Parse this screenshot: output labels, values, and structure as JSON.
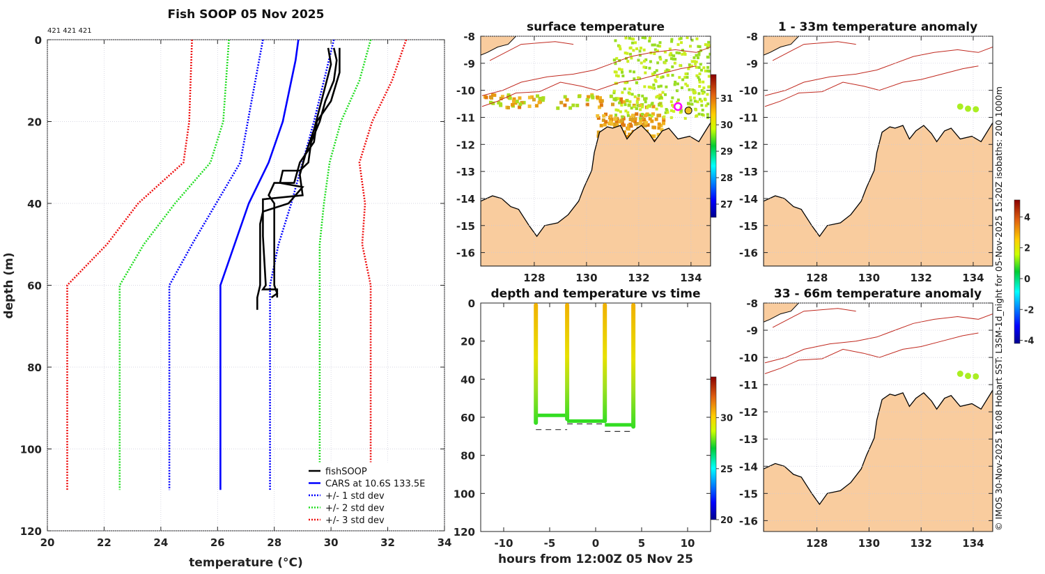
{
  "credit": "© IMOS 30-Nov-2025 16:08 Hobart SST: L3SM-1d_night for 05-Nov-2025 15:20Z isobaths: 200  1000m",
  "colors": {
    "land": "#f9cc9e",
    "isobath": "#c0281e",
    "coast": "#000000",
    "cars": "#0000ff",
    "std1": "#0000ff",
    "std2": "#22dd22",
    "std3": "#ee1111",
    "fishsoop": "#000000"
  },
  "chart_data": [
    {
      "type": "line",
      "title": "Fish SOOP 05 Nov 2025",
      "annotation": "421 421 421",
      "xlabel": "temperature (°C)",
      "ylabel": "depth (m)",
      "xlim": [
        20,
        34
      ],
      "ylim": [
        0,
        120
      ],
      "xticks": [
        "20",
        "22",
        "24",
        "26",
        "28",
        "30",
        "32",
        "34"
      ],
      "yticks": [
        "0",
        "20",
        "40",
        "60",
        "80",
        "100",
        "120"
      ],
      "grid": true,
      "legend_position": "bottom-right",
      "legend": [
        "fishSOOP",
        "CARS at 10.6S 133.5E",
        "+/- 1 std dev",
        "+/- 2 std dev",
        "+/- 3 std dev"
      ],
      "series": [
        {
          "name": "-3 std dev",
          "style": "dotted",
          "color": "#ee1111",
          "points": [
            [
              25.1,
              0
            ],
            [
              25.0,
              20
            ],
            [
              24.8,
              30
            ],
            [
              23.2,
              40
            ],
            [
              22.1,
              50
            ],
            [
              20.7,
              60
            ],
            [
              20.7,
              110
            ]
          ]
        },
        {
          "name": "-2 std dev",
          "style": "dotted",
          "color": "#22dd22",
          "points": [
            [
              26.4,
              0
            ],
            [
              26.2,
              20
            ],
            [
              25.75,
              30
            ],
            [
              24.5,
              40
            ],
            [
              23.4,
              50
            ],
            [
              22.55,
              60
            ],
            [
              22.55,
              110
            ]
          ]
        },
        {
          "name": "-1 std dev",
          "style": "dotted",
          "color": "#0000ff",
          "points": [
            [
              27.6,
              0
            ],
            [
              27.2,
              15
            ],
            [
              26.8,
              30
            ],
            [
              25.95,
              40
            ],
            [
              25.1,
              50
            ],
            [
              24.3,
              60
            ],
            [
              24.3,
              110
            ]
          ]
        },
        {
          "name": "CARS at 10.6S 133.5E",
          "style": "solid",
          "color": "#0000ff",
          "points": [
            [
              28.85,
              0
            ],
            [
              28.75,
              5
            ],
            [
              28.3,
              20
            ],
            [
              27.8,
              30
            ],
            [
              27.1,
              40
            ],
            [
              26.6,
              50
            ],
            [
              26.1,
              60
            ],
            [
              26.1,
              110
            ]
          ]
        },
        {
          "name": "+1 std dev",
          "style": "dotted",
          "color": "#0000ff",
          "points": [
            [
              30.1,
              0
            ],
            [
              29.75,
              10
            ],
            [
              29.4,
              20
            ],
            [
              29.0,
              30
            ],
            [
              28.6,
              40
            ],
            [
              28.15,
              50
            ],
            [
              27.85,
              60
            ],
            [
              27.85,
              110
            ]
          ]
        },
        {
          "name": "+2 std dev",
          "style": "dotted",
          "color": "#22dd22",
          "points": [
            [
              31.4,
              0
            ],
            [
              31.0,
              10
            ],
            [
              30.35,
              20
            ],
            [
              29.95,
              30
            ],
            [
              29.75,
              40
            ],
            [
              29.6,
              50
            ],
            [
              29.6,
              60
            ],
            [
              29.6,
              110
            ]
          ]
        },
        {
          "name": "+3 std dev",
          "style": "dotted",
          "color": "#ee1111",
          "points": [
            [
              32.65,
              0
            ],
            [
              32.15,
              10
            ],
            [
              31.45,
              20
            ],
            [
              31.0,
              30
            ],
            [
              31.2,
              40
            ],
            [
              31.1,
              50
            ],
            [
              31.4,
              60
            ],
            [
              31.4,
              110
            ]
          ]
        },
        {
          "name": "fishSOOP",
          "style": "solid",
          "color": "#000000",
          "points": [
            [
              30.1,
              2
            ],
            [
              30.2,
              5
            ],
            [
              30.1,
              10
            ],
            [
              29.8,
              15
            ],
            [
              29.6,
              20
            ],
            [
              29.3,
              25
            ],
            [
              29.2,
              30
            ],
            [
              28.9,
              32
            ],
            [
              28.3,
              32
            ],
            [
              28.2,
              35
            ],
            [
              29.0,
              36
            ],
            [
              28.5,
              40
            ],
            [
              27.6,
              42
            ],
            [
              27.5,
              45
            ],
            [
              27.5,
              60
            ],
            [
              27.4,
              63
            ],
            [
              27.4,
              66
            ]
          ]
        },
        {
          "name": "fishSOOP",
          "style": "solid",
          "color": "#000000",
          "points": [
            [
              30.3,
              2
            ],
            [
              30.3,
              8
            ],
            [
              30.0,
              15
            ],
            [
              29.5,
              20
            ],
            [
              29.4,
              25
            ],
            [
              28.9,
              30
            ],
            [
              28.7,
              35
            ],
            [
              28.0,
              35
            ],
            [
              27.8,
              38
            ],
            [
              28.0,
              40
            ],
            [
              28.0,
              60
            ],
            [
              28.1,
              62
            ],
            [
              27.9,
              63
            ]
          ]
        },
        {
          "name": "fishSOOP",
          "style": "solid",
          "color": "#000000",
          "points": [
            [
              29.9,
              2
            ],
            [
              30.0,
              6
            ],
            [
              29.7,
              14
            ],
            [
              29.4,
              22
            ],
            [
              29.1,
              28
            ],
            [
              28.9,
              33
            ],
            [
              29.0,
              38
            ],
            [
              27.6,
              39
            ],
            [
              27.6,
              48
            ],
            [
              27.7,
              60
            ],
            [
              27.6,
              61
            ],
            [
              28.1,
              61
            ],
            [
              28.1,
              63
            ]
          ]
        }
      ]
    },
    {
      "type": "heatmap",
      "title": "surface temperature",
      "xticks": [
        "128",
        "130",
        "132",
        "134"
      ],
      "yticks": [
        "-8",
        "-9",
        "-10",
        "-11",
        "-12",
        "-13",
        "-14",
        "-15",
        "-16"
      ],
      "xlim": [
        125.95,
        134.75
      ],
      "ylim": [
        -16.5,
        -8
      ],
      "colorbar": {
        "ticks": [
          "27",
          "28",
          "29",
          "30",
          "31"
        ],
        "range": [
          26.5,
          31.9
        ]
      },
      "markers": [
        {
          "lon": 133.5,
          "lat": -10.6,
          "color": "#ff00ff"
        },
        {
          "lon": 133.9,
          "lat": -10.75,
          "color": "#f0c020"
        }
      ]
    },
    {
      "type": "scatter",
      "title": "depth and temperature vs time",
      "xlabel": "hours from 12:00Z 05 Nov 25",
      "xticks": [
        "-10",
        "-5",
        "0",
        "5",
        "10"
      ],
      "yticks": [
        "0",
        "20",
        "40",
        "60",
        "80",
        "100",
        "120"
      ],
      "xlim": [
        -12.5,
        12.5
      ],
      "ylim": [
        0,
        120
      ],
      "colorbar": {
        "ticks": [
          "20",
          "25",
          "30"
        ],
        "range": [
          20,
          34
        ]
      },
      "casts": [
        {
          "hours": -6.5,
          "max_depth": 64
        },
        {
          "hours": -3.1,
          "max_depth": 62
        },
        {
          "hours": 1.0,
          "max_depth": 63
        },
        {
          "hours": 4.1,
          "max_depth": 66
        }
      ],
      "bottom_tracks": [
        {
          "from": -6.5,
          "to": -3.1,
          "depth": 59,
          "ref_depth": 65
        },
        {
          "from": -3.1,
          "to": 1.0,
          "depth": 62,
          "ref_depth": 62
        },
        {
          "from": 1.0,
          "to": 4.1,
          "depth": 64,
          "ref_depth": 66
        }
      ]
    },
    {
      "type": "heatmap",
      "title": "1 - 33m temperature anomaly",
      "xticks": [
        "128",
        "130",
        "132",
        "134"
      ],
      "yticks": [
        "-8",
        "-9",
        "-10",
        "-11",
        "-12",
        "-13",
        "-14",
        "-15",
        "-16"
      ],
      "points": [
        [
          133.5,
          -10.6
        ],
        [
          133.8,
          -10.68
        ],
        [
          134.1,
          -10.7
        ]
      ]
    },
    {
      "type": "heatmap",
      "title": "33 - 66m temperature anomaly",
      "xticks": [
        "128",
        "130",
        "132",
        "134"
      ],
      "yticks": [
        "-8",
        "-9",
        "-10",
        "-11",
        "-12",
        "-13",
        "-14",
        "-15",
        "-16"
      ],
      "points": [
        [
          133.5,
          -10.6
        ],
        [
          133.8,
          -10.68
        ],
        [
          134.1,
          -10.7
        ]
      ],
      "colorbar": {
        "ticks": [
          "4",
          "2",
          "0",
          "-2",
          "-4"
        ],
        "range": [
          -4.2,
          5.1
        ]
      }
    }
  ]
}
